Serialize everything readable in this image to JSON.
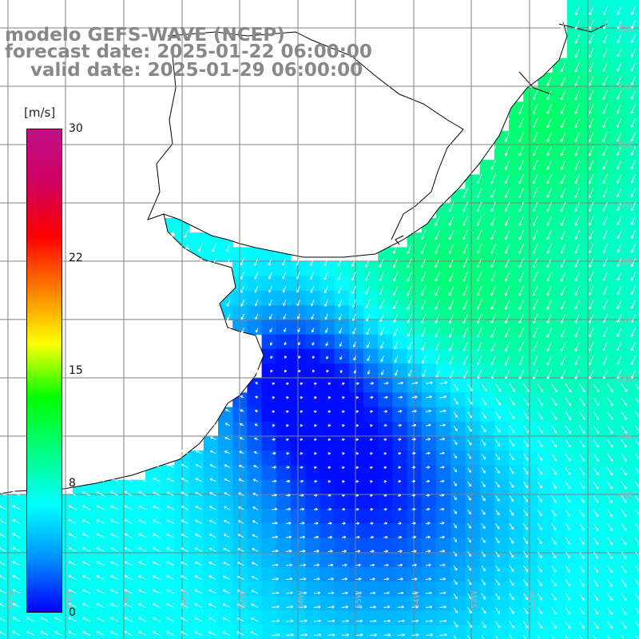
{
  "header": {
    "line1": "modelo GEFS-WAVE (NCEP)",
    "line2": "forecast date: 2025-01-22 06:00:00",
    "line3": "    valid date: 2025-01-29 06:00:00"
  },
  "colorbar": {
    "units": "[m/s]",
    "ticks": [
      "30",
      "22",
      "15",
      "8",
      "0"
    ],
    "tick_values": [
      30,
      22,
      15,
      8,
      0
    ],
    "min": 0,
    "max": 30,
    "colors": [
      "#0000ff",
      "#0090ff",
      "#00ffff",
      "#00ff80",
      "#00ff00",
      "#ffff00",
      "#ff8000",
      "#ff0000",
      "#d00060",
      "#c0108a"
    ]
  },
  "map": {
    "lat_labels": [
      "32S",
      "33S",
      "34S",
      "35S",
      "36S",
      "37S",
      "38S",
      "39S",
      "40S"
    ],
    "lon_labels": [
      "61W",
      "60W",
      "59W",
      "58W",
      "57W",
      "56W",
      "55W",
      "54W",
      "53W",
      "52W"
    ],
    "grid_color": "#808080",
    "coast_color": "#000000"
  }
}
